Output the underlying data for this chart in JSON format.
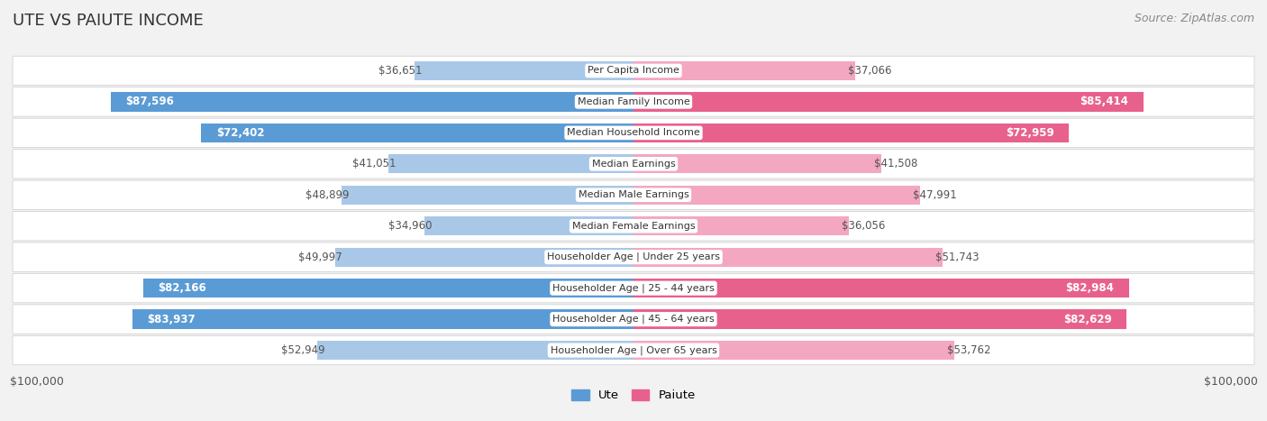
{
  "title": "UTE VS PAIUTE INCOME",
  "source": "Source: ZipAtlas.com",
  "categories": [
    "Per Capita Income",
    "Median Family Income",
    "Median Household Income",
    "Median Earnings",
    "Median Male Earnings",
    "Median Female Earnings",
    "Householder Age | Under 25 years",
    "Householder Age | 25 - 44 years",
    "Householder Age | 45 - 64 years",
    "Householder Age | Over 65 years"
  ],
  "ute_values": [
    36651,
    87596,
    72402,
    41051,
    48899,
    34960,
    49997,
    82166,
    83937,
    52949
  ],
  "paiute_values": [
    37066,
    85414,
    72959,
    41508,
    47991,
    36056,
    51743,
    82984,
    82629,
    53762
  ],
  "ute_labels": [
    "$36,651",
    "$87,596",
    "$72,402",
    "$41,051",
    "$48,899",
    "$34,960",
    "$49,997",
    "$82,166",
    "$83,937",
    "$52,949"
  ],
  "paiute_labels": [
    "$37,066",
    "$85,414",
    "$72,959",
    "$41,508",
    "$47,991",
    "$36,056",
    "$51,743",
    "$82,984",
    "$82,629",
    "$53,762"
  ],
  "max_value": 100000,
  "ute_color_strong": "#5b9bd5",
  "ute_color_light": "#a9c8e8",
  "paiute_color_strong": "#e8618c",
  "paiute_color_light": "#f4a7c0",
  "background_color": "#f2f2f2",
  "row_bg_color": "#ebebeb",
  "threshold_strong": 60000,
  "title_fontsize": 13,
  "source_fontsize": 9,
  "bar_label_fontsize": 8.5,
  "category_fontsize": 8,
  "axis_label_fontsize": 9
}
